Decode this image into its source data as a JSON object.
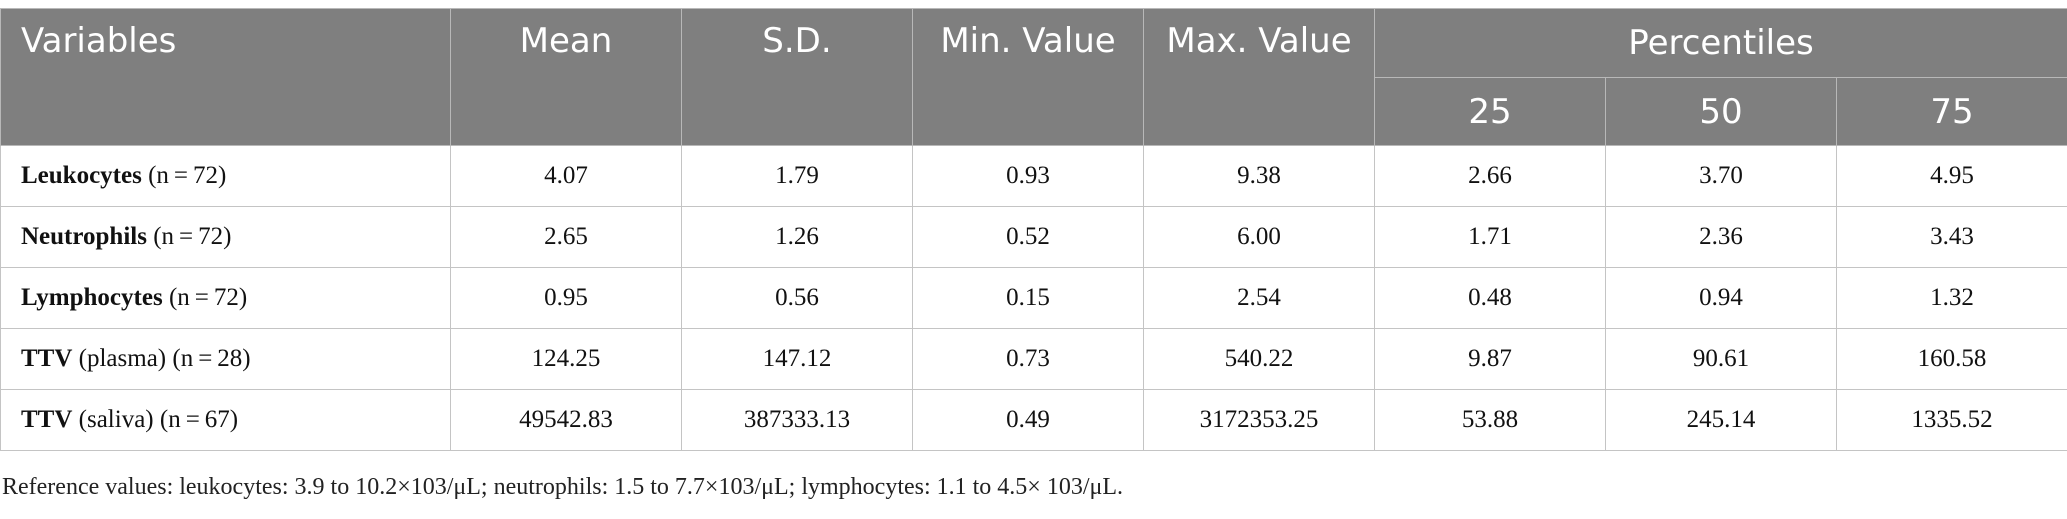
{
  "table": {
    "headers": {
      "variables": "Variables",
      "mean": "Mean",
      "sd": "S.D.",
      "min": "Min. Value",
      "max": "Max. Value",
      "percentiles": "Percentiles",
      "p25": "25",
      "p50": "50",
      "p75": "75"
    },
    "rows": [
      {
        "name": "Leukocytes",
        "qualifier": "",
        "n": "(n = 72)",
        "mean": "4.07",
        "sd": "1.79",
        "min": "0.93",
        "max": "9.38",
        "p25": "2.66",
        "p50": "3.70",
        "p75": "4.95"
      },
      {
        "name": "Neutrophils",
        "qualifier": "",
        "n": "(n = 72)",
        "mean": "2.65",
        "sd": "1.26",
        "min": "0.52",
        "max": "6.00",
        "p25": "1.71",
        "p50": "2.36",
        "p75": "3.43"
      },
      {
        "name": "Lymphocytes",
        "qualifier": "",
        "n": "(n = 72)",
        "mean": "0.95",
        "sd": "0.56",
        "min": "0.15",
        "max": "2.54",
        "p25": "0.48",
        "p50": "0.94",
        "p75": "1.32"
      },
      {
        "name": "TTV",
        "qualifier": "(plasma)",
        "n": "(n = 28)",
        "mean": "124.25",
        "sd": "147.12",
        "min": "0.73",
        "max": "540.22",
        "p25": "9.87",
        "p50": "90.61",
        "p75": "160.58"
      },
      {
        "name": "TTV",
        "qualifier": "(saliva)",
        "n": "(n = 67)",
        "mean": "49542.83",
        "sd": "387333.13",
        "min": "0.49",
        "max": "3172353.25",
        "p25": "53.88",
        "p50": "245.14",
        "p75": "1335.52"
      }
    ]
  },
  "footnote": "Reference values: leukocytes: 3.9 to 10.2×103/μL; neutrophils: 1.5 to 7.7×103/μL; lymphocytes: 1.1 to 4.5× 103/μL."
}
